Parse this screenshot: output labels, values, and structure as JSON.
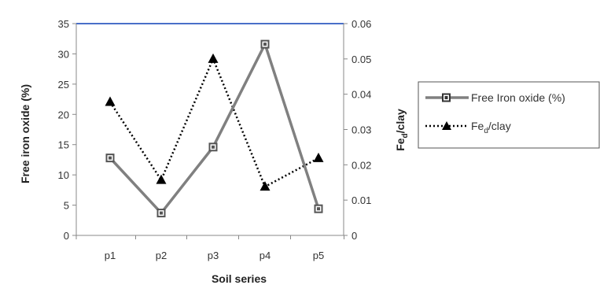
{
  "chart_data": {
    "type": "line",
    "categories": [
      "p1",
      "p2",
      "p3",
      "p4",
      "p5"
    ],
    "xlabel": "Soil series",
    "ylabel_left": "Free iron oxide (%)",
    "ylabel_right": {
      "base": "Fe",
      "sub": "d",
      "rest": "/clay"
    },
    "ylim_left": [
      0,
      35
    ],
    "yticks_left": [
      "0",
      "5",
      "10",
      "15",
      "20",
      "25",
      "30",
      "35"
    ],
    "ylim_right": [
      0,
      0.06
    ],
    "yticks_right": [
      "0",
      "0.01",
      "0.02",
      "0.03",
      "0.04",
      "0.05",
      "0.06"
    ],
    "grid": false,
    "legend_position": "right",
    "series": [
      {
        "name": "Free Iron oxide (%)",
        "axis": "left",
        "style": "solid-gray-square",
        "values": [
          12.8,
          3.7,
          14.6,
          31.6,
          4.4
        ]
      },
      {
        "name": {
          "base": "Fe",
          "sub": "d",
          "rest": "/clay"
        },
        "axis": "right",
        "style": "dotted-black-triangle",
        "values": [
          0.0378,
          0.0157,
          0.05,
          0.0138,
          0.0219
        ]
      }
    ],
    "colors": {
      "series1_line": "#808080",
      "series1_marker": "#555555",
      "series2": "#000000",
      "top_line": "#4a6fc9",
      "axis": "#888888"
    }
  }
}
